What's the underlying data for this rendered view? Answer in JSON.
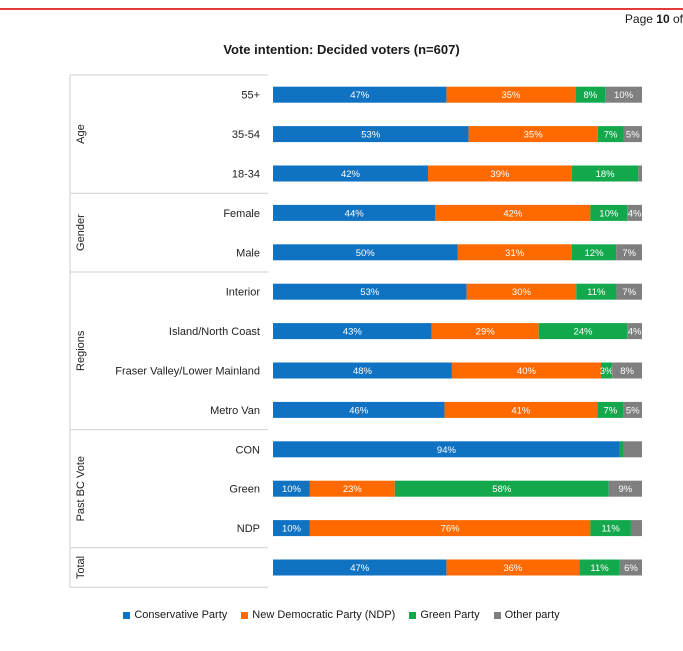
{
  "header": {
    "page_prefix": "Page",
    "page_number": "10",
    "page_suffix": "of"
  },
  "colors": {
    "accent_line": "#e53a3a"
  },
  "chart_data": {
    "type": "bar",
    "orientation": "horizontal",
    "stacked": true,
    "normalized": true,
    "title": "Vote intention: Decided voters (n=607)",
    "xlim": [
      0,
      100
    ],
    "groups": [
      {
        "name": "Age",
        "categories": [
          "55+",
          "35-54",
          "18-34"
        ]
      },
      {
        "name": "Gender",
        "categories": [
          "Female",
          "Male"
        ]
      },
      {
        "name": "Regions",
        "categories": [
          "Interior",
          "Island/North Coast",
          "Fraser Valley/Lower Mainland",
          "Metro Van"
        ]
      },
      {
        "name": "Past BC Vote",
        "categories": [
          "CON",
          "Green",
          "NDP"
        ]
      },
      {
        "name": "Total",
        "categories": [
          ""
        ]
      }
    ],
    "series": [
      {
        "name": "Conservative Party",
        "color": "#0f72c2",
        "values": [
          47,
          53,
          42,
          44,
          50,
          53,
          43,
          48,
          46,
          94,
          10,
          10,
          47
        ],
        "labels": [
          "47%",
          "53%",
          "42%",
          "44%",
          "50%",
          "53%",
          "43%",
          "48%",
          "46%",
          "94%",
          "10%",
          "10%",
          "47%"
        ]
      },
      {
        "name": "New Democratic Party (NDP)",
        "color": "#ff6a00",
        "values": [
          35,
          35,
          39,
          42,
          31,
          30,
          29,
          40,
          41,
          0,
          23,
          76,
          36
        ],
        "labels": [
          "35%",
          "35%",
          "39%",
          "42%",
          "31%",
          "30%",
          "29%",
          "40%",
          "41%",
          "",
          "23%",
          "76%",
          "36%"
        ]
      },
      {
        "name": "Green Party",
        "color": "#14a84c",
        "values": [
          8,
          7,
          18,
          10,
          12,
          11,
          24,
          3,
          7,
          1,
          58,
          11,
          11
        ],
        "labels": [
          "8%",
          "7%",
          "18%",
          "10%",
          "12%",
          "11%",
          "24%",
          "3%",
          "7%",
          "",
          "58%",
          "11%",
          "11%"
        ]
      },
      {
        "name": "Other party",
        "color": "#7f7f7f",
        "values": [
          10,
          5,
          1,
          4,
          7,
          7,
          4,
          8,
          5,
          5,
          9,
          3,
          6
        ],
        "labels": [
          "10%",
          "5%",
          "",
          "4%",
          "7%",
          "7%",
          "4%",
          "8%",
          "5%",
          "",
          "9%",
          "",
          "6%"
        ]
      }
    ],
    "legend_position": "bottom",
    "grid": false
  }
}
